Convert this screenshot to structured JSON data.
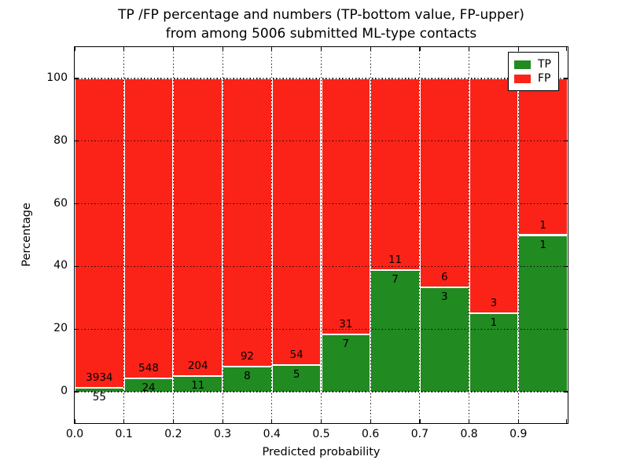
{
  "title": {
    "line1": "TP /FP percentage and numbers (TP-bottom value, FP-upper)",
    "line2": "from among 5006 submitted ML-type contacts"
  },
  "chart_data": {
    "type": "bar",
    "stacked": true,
    "normalized": "percent",
    "title": "TP /FP percentage and numbers (TP-bottom value, FP-upper) from among 5006 submitted ML-type contacts",
    "xlabel": "Predicted probability",
    "ylabel": "Percentage",
    "total_contacts": 5006,
    "bin_edges": [
      0.0,
      0.1,
      0.2,
      0.3,
      0.4,
      0.5,
      0.6,
      0.7,
      0.8,
      0.9,
      1.0
    ],
    "series": [
      {
        "name": "TP",
        "color": "#218a21",
        "counts": [
          55,
          24,
          11,
          8,
          5,
          7,
          7,
          3,
          1,
          1
        ]
      },
      {
        "name": "FP",
        "color": "#fb2318",
        "counts": [
          3934,
          548,
          204,
          92,
          54,
          31,
          11,
          6,
          3,
          1
        ]
      }
    ],
    "tp_percent_per_bin": [
      1.38,
      4.2,
      5.12,
      8.0,
      8.47,
      18.42,
      38.89,
      33.33,
      25.0,
      50.0
    ],
    "xlim": [
      0.0,
      1.0
    ],
    "ylim": [
      -10,
      110
    ],
    "xtick_labels": [
      "0.0",
      "0.1",
      "0.2",
      "0.3",
      "0.4",
      "0.5",
      "0.6",
      "0.7",
      "0.8",
      "0.9"
    ],
    "ytick_values": [
      0,
      20,
      40,
      60,
      80,
      100
    ],
    "grid": true,
    "grid_style": "dotted",
    "legend": {
      "position": "upper right"
    }
  }
}
